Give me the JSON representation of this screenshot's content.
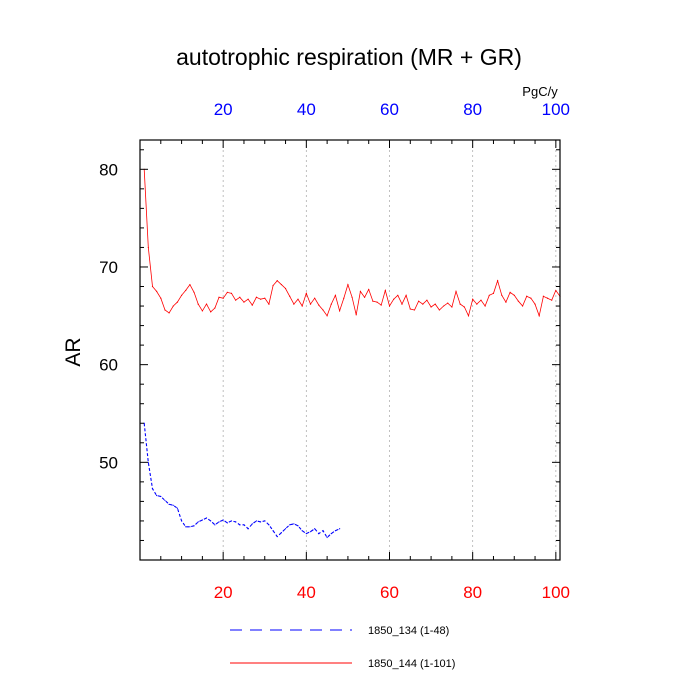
{
  "chart_data": {
    "type": "line",
    "title": "autotrophic respiration (MR + GR)",
    "ylabel": "AR",
    "top_units": "PgC/y",
    "xlim": [
      0,
      101
    ],
    "ylim": [
      40,
      83
    ],
    "x_ticks": [
      20,
      40,
      60,
      80,
      100
    ],
    "y_ticks": [
      50,
      60,
      70,
      80
    ],
    "x_tick_labels_bottom": [
      "20",
      "40",
      "60",
      "80",
      "100"
    ],
    "x_tick_labels_top": [
      "20",
      "40",
      "60",
      "80",
      "100"
    ],
    "y_tick_labels": [
      "50",
      "60",
      "70",
      "80"
    ],
    "grid_x": true,
    "grid_y": false,
    "legend_position": "bottom",
    "colors": {
      "bottom_axis": "#ff0000",
      "top_axis": "#0000ff"
    },
    "series": [
      {
        "name": "1850_134 (1-48)",
        "color": "#0000ff",
        "style": "dashed",
        "x": [
          1,
          2,
          3,
          4,
          5,
          6,
          7,
          8,
          9,
          10,
          11,
          12,
          13,
          14,
          15,
          16,
          17,
          18,
          19,
          20,
          21,
          22,
          23,
          24,
          25,
          26,
          27,
          28,
          29,
          30,
          31,
          32,
          33,
          34,
          35,
          36,
          37,
          38,
          39,
          40,
          41,
          42,
          43,
          44,
          45,
          46,
          47,
          48
        ],
        "values": [
          54.0,
          50.0,
          47.3,
          46.6,
          46.5,
          46.1,
          45.7,
          45.6,
          45.3,
          44.0,
          43.4,
          43.4,
          43.5,
          43.9,
          44.1,
          44.3,
          44.0,
          43.6,
          43.9,
          44.1,
          43.8,
          44.0,
          43.9,
          43.6,
          43.6,
          43.2,
          43.7,
          44.0,
          43.9,
          44.0,
          43.6,
          43.0,
          42.4,
          42.8,
          43.2,
          43.6,
          43.7,
          43.5,
          43.0,
          42.7,
          42.9,
          43.2,
          42.7,
          43.0,
          42.3,
          42.7,
          43.0,
          43.2
        ]
      },
      {
        "name": "1850_144 (1-101)",
        "color": "#ff0000",
        "style": "solid",
        "x": [
          1,
          2,
          3,
          4,
          5,
          6,
          7,
          8,
          9,
          10,
          11,
          12,
          13,
          14,
          15,
          16,
          17,
          18,
          19,
          20,
          21,
          22,
          23,
          24,
          25,
          26,
          27,
          28,
          29,
          30,
          31,
          32,
          33,
          34,
          35,
          36,
          37,
          38,
          39,
          40,
          41,
          42,
          43,
          44,
          45,
          46,
          47,
          48,
          49,
          50,
          51,
          52,
          53,
          54,
          55,
          56,
          57,
          58,
          59,
          60,
          61,
          62,
          63,
          64,
          65,
          66,
          67,
          68,
          69,
          70,
          71,
          72,
          73,
          74,
          75,
          76,
          77,
          78,
          79,
          80,
          81,
          82,
          83,
          84,
          85,
          86,
          87,
          88,
          89,
          90,
          91,
          92,
          93,
          94,
          95,
          96,
          97,
          98,
          99,
          100,
          101
        ],
        "values": [
          80.0,
          72.0,
          68.0,
          67.5,
          66.8,
          65.6,
          65.3,
          66.0,
          66.4,
          67.1,
          67.6,
          68.2,
          67.4,
          66.2,
          65.5,
          66.2,
          65.4,
          65.8,
          66.9,
          66.8,
          67.4,
          67.3,
          66.6,
          66.9,
          66.4,
          66.7,
          66.1,
          66.9,
          66.7,
          66.8,
          66.2,
          68.1,
          68.6,
          68.2,
          67.8,
          67.0,
          66.2,
          66.7,
          66.0,
          67.3,
          66.2,
          66.8,
          66.1,
          65.6,
          65.0,
          66.2,
          67.1,
          65.5,
          66.8,
          68.2,
          66.9,
          65.1,
          67.5,
          66.9,
          67.7,
          66.5,
          66.4,
          66.1,
          67.6,
          66.0,
          66.7,
          67.1,
          66.2,
          67.1,
          65.7,
          65.6,
          66.5,
          66.2,
          66.6,
          65.9,
          66.2,
          65.6,
          66.0,
          66.3,
          65.9,
          67.5,
          66.2,
          65.9,
          65.0,
          66.7,
          66.2,
          66.6,
          66.0,
          67.1,
          67.3,
          68.6,
          67.1,
          66.4,
          67.4,
          67.1,
          66.5,
          66.0,
          67.0,
          66.8,
          66.2,
          65.0,
          67.0,
          66.8,
          66.6,
          67.6,
          67.0
        ]
      }
    ]
  }
}
